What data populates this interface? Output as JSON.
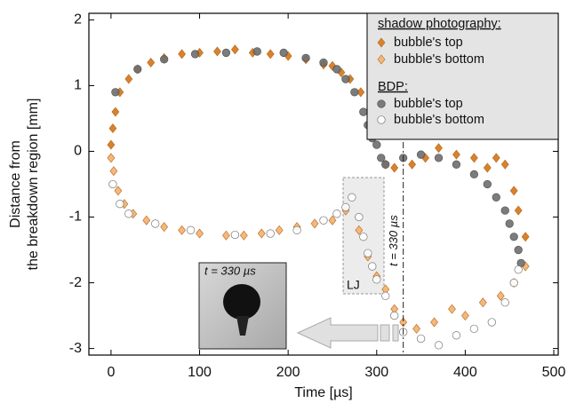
{
  "chart_data": {
    "type": "scatter",
    "x_label": "Time [µs]",
    "y_label": [
      "Distance from",
      "the breakdown region [mm]"
    ],
    "xlim": [
      -25,
      505
    ],
    "ylim": [
      -3.1,
      2.1
    ],
    "xticks": [
      0,
      100,
      200,
      300,
      400,
      500
    ],
    "yticks": [
      -3,
      -2,
      -1,
      0,
      1,
      2
    ],
    "legend_titles": [
      "shadow photography:",
      "BDP:"
    ],
    "legend_position": "upper right",
    "series": [
      {
        "name": "bubble's top",
        "color": "#d9822b",
        "marker": "diamond",
        "x": [
          0,
          2,
          5,
          10,
          20,
          30,
          45,
          60,
          80,
          100,
          120,
          140,
          160,
          180,
          200,
          220,
          240,
          250,
          260,
          270,
          282,
          310,
          320,
          340,
          355,
          370,
          390,
          410,
          425,
          435,
          445,
          455,
          460,
          468
        ],
        "values": [
          0.1,
          0.35,
          0.6,
          0.9,
          1.1,
          1.25,
          1.35,
          1.42,
          1.48,
          1.5,
          1.52,
          1.55,
          1.5,
          1.48,
          1.45,
          1.4,
          1.32,
          1.3,
          1.2,
          1.1,
          0.9,
          -0.2,
          -0.25,
          -0.2,
          -0.1,
          0.05,
          -0.05,
          -0.1,
          -0.25,
          -0.1,
          -0.2,
          -0.6,
          -0.9,
          -1.3
        ]
      },
      {
        "name": "bubble's bottom",
        "color": "#f5b77a",
        "marker": "diamond",
        "x": [
          0,
          3,
          8,
          15,
          25,
          40,
          60,
          80,
          100,
          130,
          150,
          170,
          190,
          210,
          230,
          250,
          265,
          280,
          290,
          300,
          310,
          320,
          330,
          345,
          365,
          385,
          400,
          420,
          440,
          455,
          468
        ],
        "values": [
          -0.1,
          -0.3,
          -0.6,
          -0.8,
          -0.95,
          -1.05,
          -1.15,
          -1.2,
          -1.25,
          -1.28,
          -1.28,
          -1.25,
          -1.2,
          -1.15,
          -1.1,
          -1.05,
          -0.9,
          -1.2,
          -1.6,
          -1.9,
          -2.1,
          -2.4,
          -2.6,
          -2.7,
          -2.6,
          -2.4,
          -2.5,
          -2.3,
          -2.2,
          -2.0,
          -1.75
        ]
      },
      {
        "name": "bubble's top",
        "color": "#6e6e6e",
        "marker": "circle",
        "x": [
          5,
          30,
          60,
          95,
          130,
          165,
          195,
          220,
          240,
          255,
          265,
          275,
          285,
          290,
          295,
          300,
          305,
          310,
          330,
          350,
          370,
          390,
          410,
          425,
          435,
          445,
          450,
          455,
          460,
          463
        ],
        "values": [
          0.9,
          1.25,
          1.4,
          1.48,
          1.5,
          1.52,
          1.5,
          1.42,
          1.35,
          1.25,
          1.1,
          0.9,
          0.6,
          0.4,
          0.2,
          0.1,
          -0.1,
          -0.2,
          -0.1,
          -0.05,
          -0.1,
          -0.2,
          -0.35,
          -0.5,
          -0.7,
          -0.9,
          -1.1,
          -1.3,
          -1.5,
          -1.7
        ]
      },
      {
        "name": "bubble's bottom",
        "color": "#ffffff",
        "marker": "circle",
        "x": [
          2,
          10,
          20,
          50,
          90,
          140,
          180,
          210,
          240,
          255,
          265,
          272,
          280,
          285,
          290,
          295,
          300,
          310,
          320,
          330,
          350,
          370,
          390,
          410,
          430,
          445,
          455,
          460
        ],
        "values": [
          -0.5,
          -0.8,
          -0.95,
          -1.1,
          -1.2,
          -1.27,
          -1.25,
          -1.2,
          -1.05,
          -0.95,
          -0.85,
          -0.7,
          -1.0,
          -1.3,
          -1.55,
          -1.75,
          -1.95,
          -2.2,
          -2.5,
          -2.75,
          -2.85,
          -2.95,
          -2.8,
          -2.7,
          -2.6,
          -2.3,
          -2.0,
          -1.8
        ]
      }
    ],
    "annotations": [
      {
        "text": "t = 330 µs",
        "x": 330
      },
      {
        "text": "LJ"
      },
      {
        "text": "t = 330 µs"
      }
    ]
  }
}
